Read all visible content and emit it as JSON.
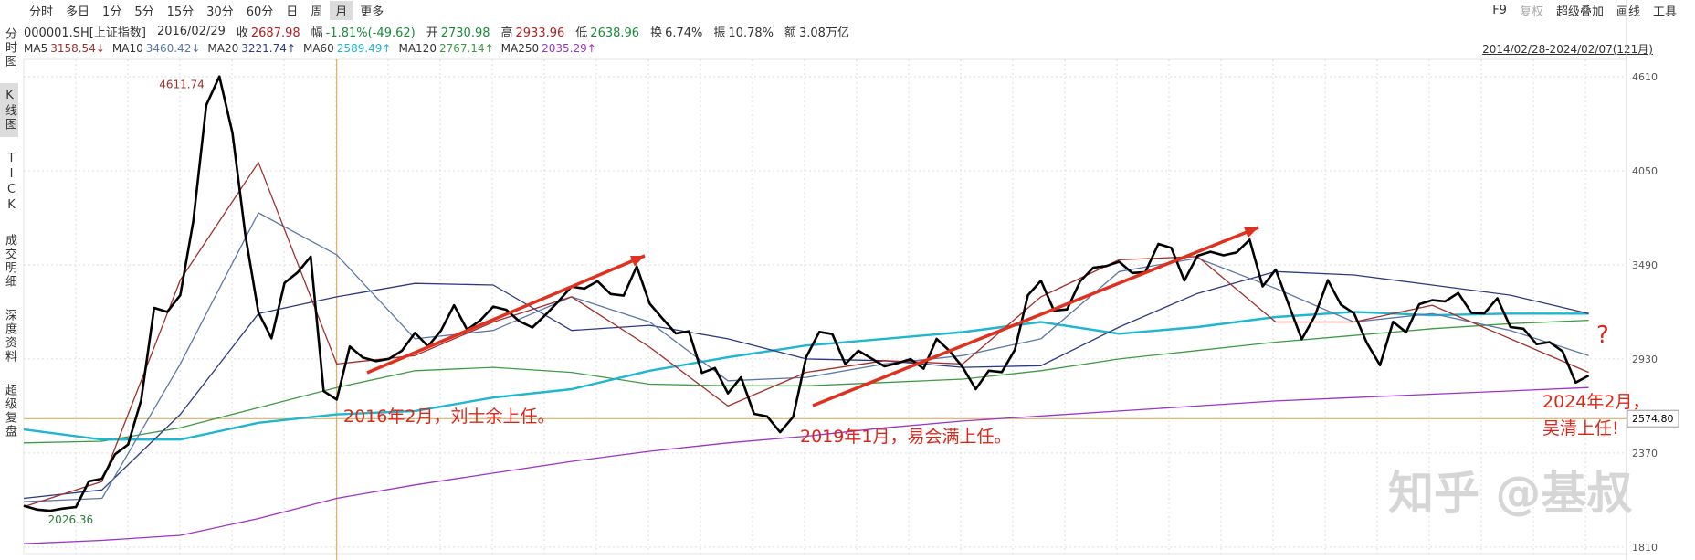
{
  "toolbar": {
    "tabs": [
      "分时",
      "多日",
      "1分",
      "5分",
      "15分",
      "30分",
      "60分",
      "日",
      "周",
      "月",
      "更多"
    ],
    "active": "月",
    "right": [
      "F9",
      "复权",
      "超级叠加",
      "画线",
      "工具"
    ]
  },
  "sidebar": [
    "分时图",
    "K线图",
    "TICK",
    "成交明细",
    "深度资料",
    "超级复盘"
  ],
  "info": [
    {
      "text": "000001.SH[上证指数]",
      "color": "#333"
    },
    {
      "text": "2016/02/29",
      "color": "#333"
    },
    {
      "label": "收",
      "text": "2687.98",
      "color": "#b02020"
    },
    {
      "label": "幅",
      "text": "-1.81%(-49.62)",
      "color": "#1a8a3a"
    },
    {
      "label": "开",
      "text": "2730.98",
      "color": "#1a8a3a"
    },
    {
      "label": "高",
      "text": "2933.96",
      "color": "#b02020"
    },
    {
      "label": "低",
      "text": "2638.96",
      "color": "#1a8a3a"
    },
    {
      "label": "换",
      "text": "6.74%",
      "color": "#333"
    },
    {
      "label": "振",
      "text": "10.78%",
      "color": "#333"
    },
    {
      "label": "额",
      "text": "3.08万亿",
      "color": "#333"
    }
  ],
  "date_range": "2014/02/28-2024/02/07(121月)",
  "chart_data": {
    "type": "line",
    "ylim": [
      1771,
      4681
    ],
    "yticks": [
      1810,
      2370,
      2930,
      3490,
      4050,
      4610
    ],
    "grid": true,
    "peak": {
      "value": 4611.74,
      "label": "4611.74"
    },
    "low": {
      "value": 2026.36,
      "label": "2026.36"
    },
    "price_line": {
      "value": 2574.8,
      "label": "2574.80"
    },
    "annotations": [
      "2016年2月，刘士余上任。",
      "2019年1月，易会满上任。",
      "2024年2月，",
      "吴清上任!",
      "?"
    ],
    "watermark": "知乎 @基叔",
    "close": {
      "color": "#000000",
      "values": [
        2056,
        2033,
        2026.36,
        2039,
        2048,
        2201,
        2217,
        2363,
        2420,
        2683,
        3234,
        3210,
        3310,
        3748,
        4441,
        4611.74,
        4277,
        3664,
        3206,
        3053,
        3383,
        3445,
        3539,
        2738,
        2687.98,
        3004,
        2938,
        2917,
        2930,
        2979,
        3085,
        3005,
        3100,
        3250,
        3104,
        3159,
        3242,
        3223,
        3155,
        3117,
        3192,
        3273,
        3361,
        3349,
        3393,
        3317,
        3307,
        3481,
        3259,
        3169,
        3082,
        3095,
        2847,
        2876,
        2725,
        2821,
        2603,
        2588,
        2494,
        2585,
        2941,
        3091,
        3078,
        2899,
        2979,
        2933,
        2886,
        2905,
        2929,
        2872,
        3050,
        2977,
        2880,
        2750,
        2860,
        2852,
        2985,
        3310,
        3396,
        3218,
        3225,
        3392,
        3473,
        3483,
        3509,
        3442,
        3447,
        3615,
        3591,
        3397,
        3544,
        3568,
        3547,
        3564,
        3640,
        3362,
        3462,
        3252,
        3047,
        3186,
        3399,
        3253,
        3202,
        3024,
        2893,
        3151,
        3089,
        3256,
        3280,
        3273,
        3323,
        3205,
        3202,
        3291,
        3120,
        3110,
        3018,
        3030,
        2975,
        2789,
        2831
      ]
    },
    "series": [
      {
        "name": "MA5",
        "label": "3158.54↓",
        "color": "#a0302c",
        "x": [
          0,
          6,
          12,
          18,
          24,
          30,
          36,
          42,
          48,
          54,
          60,
          66,
          72,
          78,
          84,
          90,
          96,
          102,
          108,
          114,
          120
        ],
        "values": [
          2050,
          2200,
          3400,
          4100,
          2900,
          2950,
          3150,
          3300,
          3000,
          2650,
          2850,
          2920,
          2900,
          3300,
          3520,
          3540,
          3150,
          3150,
          3250,
          3050,
          2850
        ]
      },
      {
        "name": "MA10",
        "label": "3460.42↓",
        "color": "#5a78a8",
        "x": [
          0,
          6,
          12,
          18,
          24,
          30,
          36,
          42,
          48,
          54,
          60,
          66,
          72,
          78,
          84,
          90,
          96,
          102,
          108,
          114,
          120
        ],
        "values": [
          2080,
          2100,
          2900,
          3800,
          3550,
          3050,
          3100,
          3300,
          3150,
          2800,
          2820,
          2900,
          2950,
          3050,
          3450,
          3530,
          3350,
          3150,
          3200,
          3100,
          2950
        ]
      },
      {
        "name": "MA20",
        "label": "3221.74↑",
        "color": "#2c3a80",
        "x": [
          0,
          6,
          12,
          18,
          24,
          30,
          36,
          42,
          48,
          54,
          60,
          66,
          72,
          78,
          84,
          90,
          96,
          102,
          108,
          114,
          120
        ],
        "values": [
          2100,
          2150,
          2600,
          3200,
          3300,
          3380,
          3370,
          3100,
          3130,
          3050,
          2930,
          2920,
          2880,
          2890,
          3120,
          3320,
          3450,
          3430,
          3370,
          3310,
          3200
        ]
      },
      {
        "name": "MA60",
        "label": "2589.49↑",
        "color": "#1fb6cf",
        "x": [
          0,
          6,
          12,
          18,
          24,
          30,
          36,
          42,
          48,
          54,
          60,
          66,
          72,
          78,
          84,
          90,
          96,
          102,
          108,
          114,
          120
        ],
        "values": [
          2510,
          2450,
          2450,
          2550,
          2600,
          2620,
          2700,
          2750,
          2860,
          2940,
          3010,
          3050,
          3090,
          3150,
          3080,
          3120,
          3180,
          3210,
          3190,
          3200,
          3200
        ]
      },
      {
        "name": "MA120",
        "label": "2767.14↑",
        "color": "#3f9a44",
        "x": [
          0,
          6,
          12,
          18,
          24,
          30,
          36,
          42,
          48,
          54,
          60,
          66,
          72,
          78,
          84,
          90,
          96,
          102,
          108,
          114,
          120
        ],
        "values": [
          2430,
          2440,
          2520,
          2640,
          2760,
          2860,
          2880,
          2850,
          2780,
          2770,
          2770,
          2790,
          2810,
          2860,
          2930,
          2980,
          3030,
          3070,
          3110,
          3140,
          3160
        ]
      },
      {
        "name": "MA250",
        "label": "2035.29↑",
        "color": "#9b34c8",
        "x": [
          0,
          6,
          12,
          18,
          24,
          30,
          36,
          42,
          48,
          54,
          60,
          66,
          72,
          78,
          84,
          90,
          96,
          102,
          108,
          114,
          120
        ],
        "values": [
          1830,
          1850,
          1880,
          1980,
          2100,
          2180,
          2250,
          2320,
          2380,
          2430,
          2470,
          2520,
          2560,
          2590,
          2620,
          2650,
          2680,
          2700,
          2720,
          2740,
          2760
        ]
      }
    ]
  }
}
